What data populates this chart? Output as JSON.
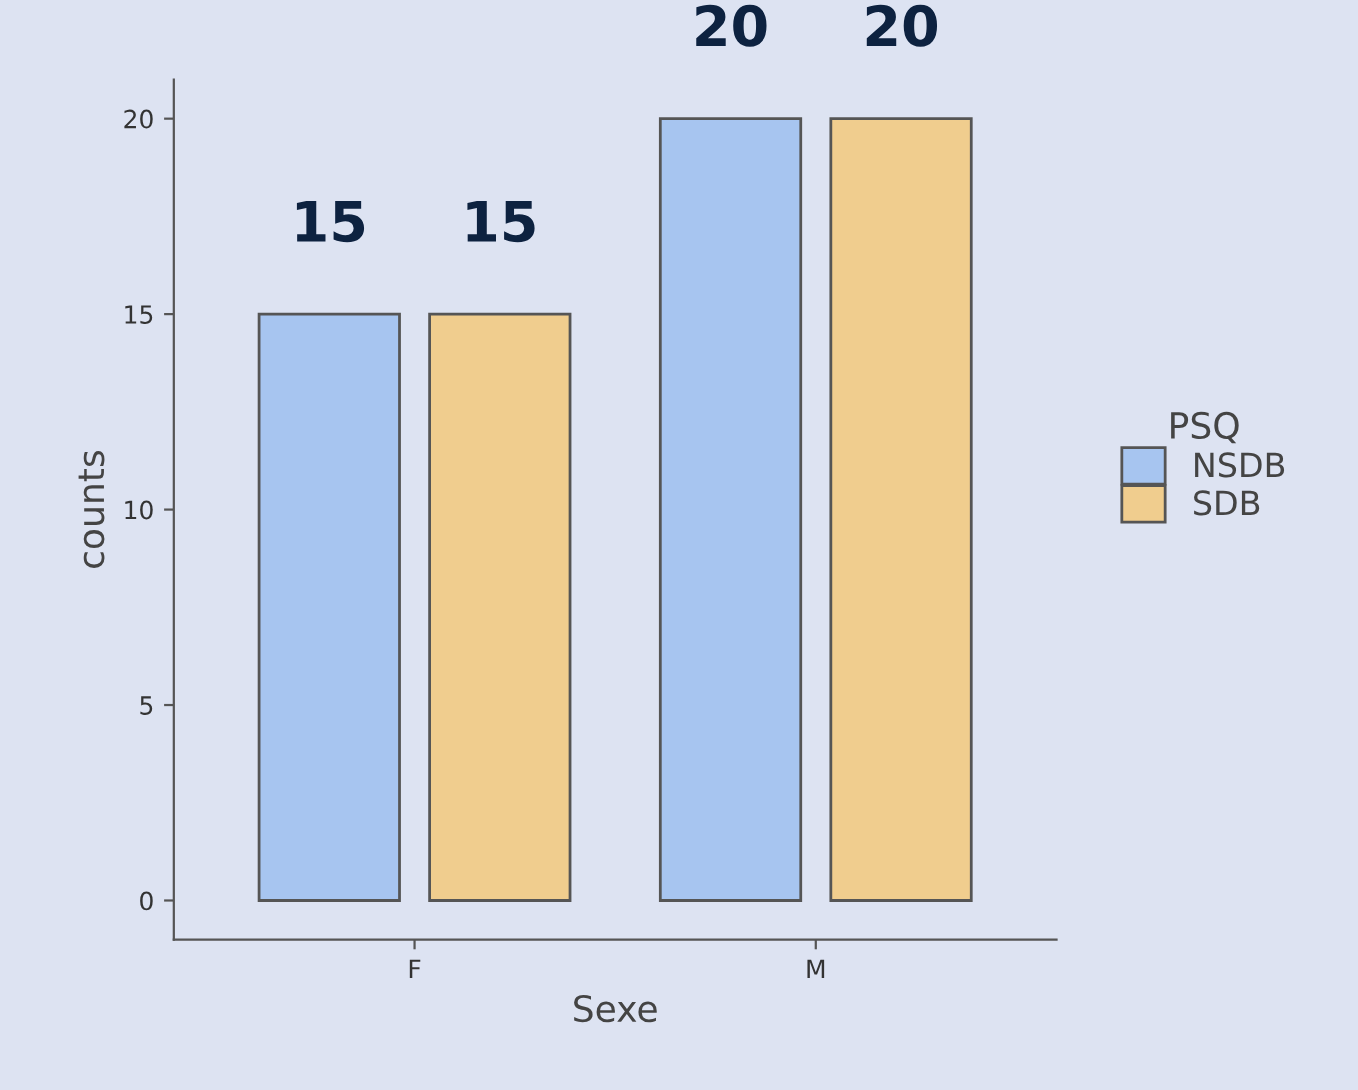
{
  "chart_data": {
    "type": "bar",
    "xlabel": "Sexe",
    "ylabel": "counts",
    "legend_title": "PSQ",
    "categories": [
      "F",
      "M"
    ],
    "series": [
      {
        "name": "NSDB",
        "color": "#a7c5f0",
        "values": [
          15,
          20
        ]
      },
      {
        "name": "SDB",
        "color": "#f0cd8e",
        "values": [
          15,
          20
        ]
      }
    ],
    "ylim": [
      -1,
      21
    ],
    "yticks": [
      0,
      5,
      10,
      15,
      20
    ],
    "grid": false,
    "legend": "right",
    "data_labels": true
  }
}
